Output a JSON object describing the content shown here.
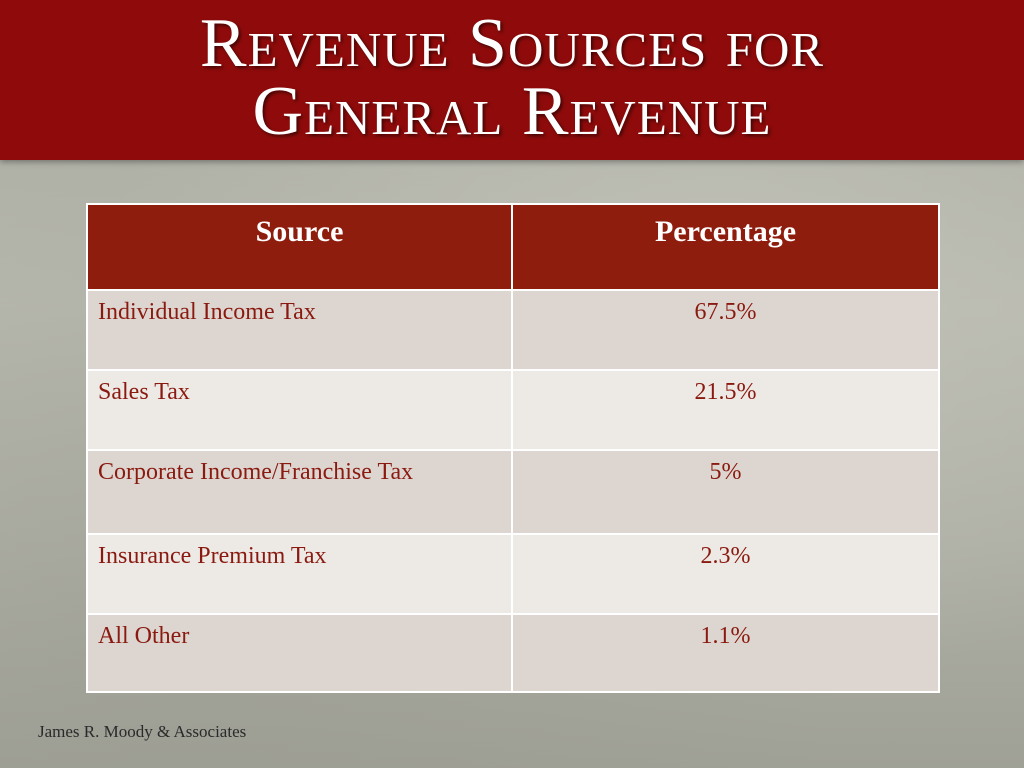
{
  "title": {
    "line1": "Revenue Sources for",
    "line2": "General Revenue"
  },
  "table": {
    "headers": [
      "Source",
      "Percentage"
    ],
    "rows": [
      [
        "Individual Income Tax",
        "67.5%"
      ],
      [
        "Sales Tax",
        "21.5%"
      ],
      [
        "Corporate Income/Franchise Tax",
        "5%"
      ],
      [
        "Insurance Premium Tax",
        "2.3%"
      ],
      [
        "All Other",
        "1.1%"
      ]
    ]
  },
  "footer": "James R. Moody & Associates",
  "colors": {
    "title_bar": "#8f0b0b",
    "header_row": "#8f1d0e",
    "cell_text": "#8a1a10",
    "row_dark": "#ddd5d0",
    "row_light": "#ede9e5"
  }
}
